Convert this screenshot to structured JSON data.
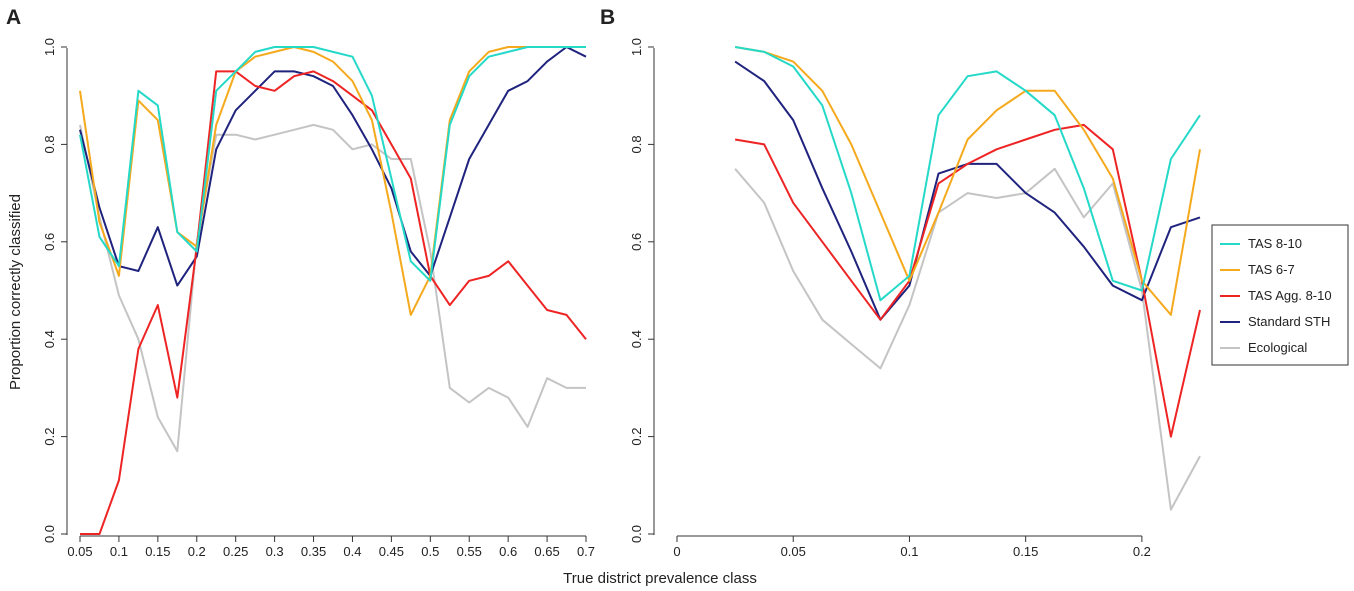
{
  "figure": {
    "xlabel": "True district prevalence class",
    "ylabel": "Proportion correctly classified"
  },
  "legend": [
    {
      "name": "TAS 8-10",
      "color": "#24d9c8"
    },
    {
      "name": "TAS 6-7",
      "color": "#f5a91d"
    },
    {
      "name": "TAS Agg. 8-10",
      "color": "#ee2424"
    },
    {
      "name": "Standard STH",
      "color": "#1f237d"
    },
    {
      "name": "Ecological",
      "color": "#c4c4c4"
    }
  ],
  "chart_data": [
    {
      "type": "line",
      "panel": "A",
      "xlim": [
        0.05,
        0.7
      ],
      "ylim": [
        0,
        1
      ],
      "xticks": [
        "0.05",
        "0.1",
        "0.15",
        "0.2",
        "0.25",
        "0.3",
        "0.35",
        "0.4",
        "0.45",
        "0.5",
        "0.55",
        "0.6",
        "0.65",
        "0.7"
      ],
      "yticks": [
        "0.0",
        "0.2",
        "0.4",
        "0.6",
        "0.8",
        "1.0"
      ],
      "x": [
        0.05,
        0.075,
        0.1,
        0.125,
        0.15,
        0.175,
        0.2,
        0.225,
        0.25,
        0.275,
        0.3,
        0.325,
        0.35,
        0.375,
        0.4,
        0.425,
        0.45,
        0.475,
        0.5,
        0.525,
        0.55,
        0.575,
        0.6,
        0.625,
        0.65,
        0.675,
        0.7
      ],
      "series": [
        {
          "name": "TAS 8-10",
          "values": [
            0.82,
            0.61,
            0.55,
            0.91,
            0.88,
            0.62,
            0.58,
            0.91,
            0.95,
            0.99,
            1.0,
            1.0,
            1.0,
            0.99,
            0.98,
            0.9,
            0.73,
            0.56,
            0.52,
            0.84,
            0.94,
            0.98,
            0.99,
            1.0,
            1.0,
            1.0,
            1.0
          ]
        },
        {
          "name": "TAS 6-7",
          "values": [
            0.91,
            0.64,
            0.53,
            0.89,
            0.85,
            0.62,
            0.59,
            0.84,
            0.95,
            0.98,
            0.99,
            1.0,
            0.99,
            0.97,
            0.93,
            0.85,
            0.66,
            0.45,
            0.53,
            0.85,
            0.95,
            0.99,
            1.0,
            1.0,
            1.0,
            1.0,
            1.0
          ]
        },
        {
          "name": "TAS Agg. 8-10",
          "values": [
            0.0,
            0.0,
            0.11,
            0.38,
            0.47,
            0.28,
            0.59,
            0.95,
            0.95,
            0.92,
            0.91,
            0.94,
            0.95,
            0.93,
            0.9,
            0.87,
            0.8,
            0.73,
            0.53,
            0.47,
            0.52,
            0.53,
            0.56,
            0.51,
            0.46,
            0.45,
            0.4
          ]
        },
        {
          "name": "Standard STH",
          "values": [
            0.83,
            0.67,
            0.55,
            0.54,
            0.63,
            0.51,
            0.57,
            0.79,
            0.87,
            0.91,
            0.95,
            0.95,
            0.94,
            0.92,
            0.86,
            0.79,
            0.71,
            0.58,
            0.53,
            0.65,
            0.77,
            0.84,
            0.91,
            0.93,
            0.97,
            1.0,
            0.98
          ]
        },
        {
          "name": "Ecological",
          "values": [
            0.84,
            0.65,
            0.49,
            0.4,
            0.24,
            0.17,
            0.6,
            0.82,
            0.82,
            0.81,
            0.82,
            0.83,
            0.84,
            0.83,
            0.79,
            0.8,
            0.77,
            0.77,
            0.58,
            0.3,
            0.27,
            0.3,
            0.28,
            0.22,
            0.32,
            0.3,
            0.3
          ]
        }
      ]
    },
    {
      "type": "line",
      "panel": "B",
      "xlim": [
        0,
        0.225
      ],
      "ylim": [
        0,
        1
      ],
      "xticks": [
        "0",
        "0.05",
        "0.1",
        "0.15",
        "0.2"
      ],
      "yticks": [
        "0.0",
        "0.2",
        "0.4",
        "0.6",
        "0.8",
        "1.0"
      ],
      "x": [
        0.025,
        0.0375,
        0.05,
        0.0625,
        0.075,
        0.0875,
        0.1,
        0.1125,
        0.125,
        0.1375,
        0.15,
        0.1625,
        0.175,
        0.1875,
        0.2,
        0.2125,
        0.225
      ],
      "series": [
        {
          "name": "TAS 8-10",
          "values": [
            1.0,
            0.99,
            0.96,
            0.88,
            0.7,
            0.48,
            0.53,
            0.86,
            0.94,
            0.95,
            0.91,
            0.86,
            0.71,
            0.52,
            0.5,
            0.77,
            0.86
          ]
        },
        {
          "name": "TAS 6-7",
          "values": [
            1.0,
            0.99,
            0.97,
            0.91,
            0.8,
            0.66,
            0.52,
            0.66,
            0.81,
            0.87,
            0.91,
            0.91,
            0.83,
            0.73,
            0.52,
            0.45,
            0.79
          ]
        },
        {
          "name": "TAS Agg. 8-10",
          "values": [
            0.81,
            0.8,
            0.68,
            0.6,
            0.52,
            0.44,
            0.52,
            0.72,
            0.76,
            0.79,
            0.81,
            0.83,
            0.84,
            0.79,
            0.52,
            0.2,
            0.46
          ]
        },
        {
          "name": "Standard STH",
          "values": [
            0.97,
            0.93,
            0.85,
            0.71,
            0.58,
            0.44,
            0.51,
            0.74,
            0.76,
            0.76,
            0.7,
            0.66,
            0.59,
            0.51,
            0.48,
            0.63,
            0.65
          ]
        },
        {
          "name": "Ecological",
          "values": [
            0.75,
            0.68,
            0.54,
            0.44,
            0.39,
            0.34,
            0.47,
            0.66,
            0.7,
            0.69,
            0.7,
            0.75,
            0.65,
            0.72,
            0.5,
            0.05,
            0.16
          ]
        }
      ]
    }
  ]
}
